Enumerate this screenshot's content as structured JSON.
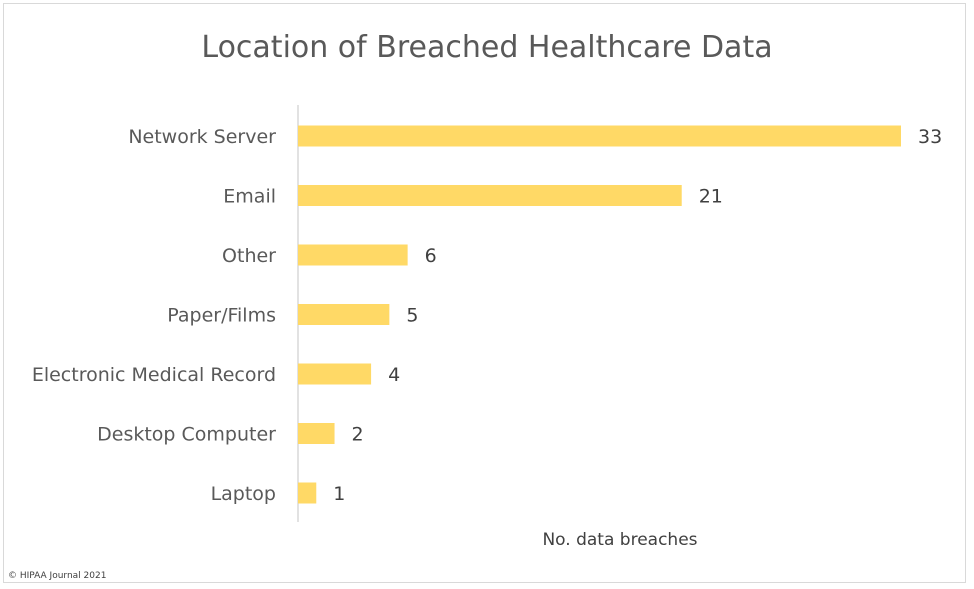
{
  "chart_data": {
    "type": "bar",
    "orientation": "horizontal",
    "title": "Location of Breached Healthcare Data",
    "categories": [
      "Network Server",
      "Email",
      "Other",
      "Paper/Films",
      "Electronic Medical Record",
      "Desktop Computer",
      "Laptop"
    ],
    "values": [
      33,
      21,
      6,
      5,
      4,
      2,
      1
    ],
    "xlabel": "No. data breaches",
    "ylabel": "",
    "xlim": [
      0,
      33
    ],
    "grid": false,
    "legend": "none",
    "bar_color": "#ffd966"
  },
  "footer": {
    "copyright": "© HIPAA Journal 2021"
  }
}
